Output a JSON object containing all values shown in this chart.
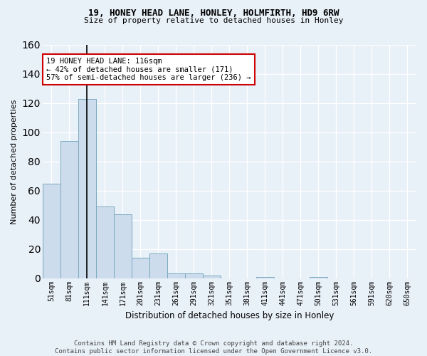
{
  "title1": "19, HONEY HEAD LANE, HONLEY, HOLMFIRTH, HD9 6RW",
  "title2": "Size of property relative to detached houses in Honley",
  "xlabel": "Distribution of detached houses by size in Honley",
  "ylabel": "Number of detached properties",
  "bar_labels": [
    "51sqm",
    "81sqm",
    "111sqm",
    "141sqm",
    "171sqm",
    "201sqm",
    "231sqm",
    "261sqm",
    "291sqm",
    "321sqm",
    "351sqm",
    "381sqm",
    "411sqm",
    "441sqm",
    "471sqm",
    "501sqm",
    "531sqm",
    "561sqm",
    "591sqm",
    "620sqm",
    "650sqm"
  ],
  "bar_values": [
    65,
    94,
    123,
    49,
    44,
    14,
    17,
    3,
    3,
    2,
    0,
    0,
    1,
    0,
    0,
    1,
    0,
    0,
    0,
    0,
    0
  ],
  "bar_color": "#cddcec",
  "bar_edge_color": "#7aaabf",
  "bg_color": "#e8f0f8",
  "grid_color": "#ffffff",
  "vline_x": 2.5,
  "annotation_text": "19 HONEY HEAD LANE: 116sqm\n← 42% of detached houses are smaller (171)\n57% of semi-detached houses are larger (236) →",
  "annotation_box_color": "#ffffff",
  "annotation_box_edge": "#cc0000",
  "ylim": [
    0,
    160
  ],
  "yticks": [
    0,
    20,
    40,
    60,
    80,
    100,
    120,
    140,
    160
  ],
  "footer": "Contains HM Land Registry data © Crown copyright and database right 2024.\nContains public sector information licensed under the Open Government Licence v3.0."
}
